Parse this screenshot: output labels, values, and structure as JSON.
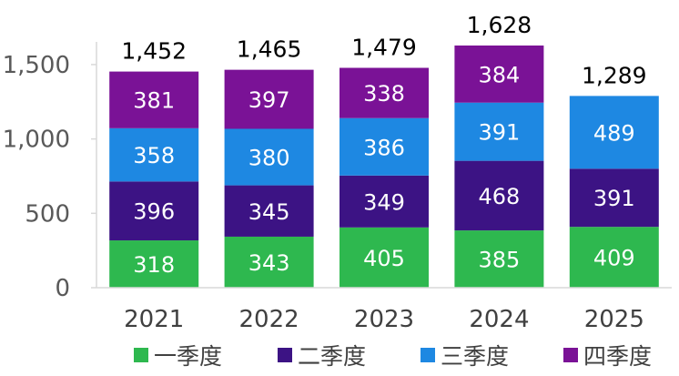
{
  "chart_data": {
    "type": "bar",
    "stacked": true,
    "categories": [
      "2021",
      "2022",
      "2023",
      "2024",
      "2025"
    ],
    "series": [
      {
        "name": "一季度",
        "color": "#2EB84F",
        "values": [
          318,
          343,
          405,
          385,
          409
        ]
      },
      {
        "name": "二季度",
        "color": "#3C1384",
        "values": [
          396,
          345,
          349,
          468,
          391
        ]
      },
      {
        "name": "三季度",
        "color": "#1E88E2",
        "values": [
          358,
          380,
          386,
          391,
          489
        ]
      },
      {
        "name": "四季度",
        "color": "#7A1296",
        "values": [
          381,
          397,
          338,
          384,
          null
        ]
      }
    ],
    "totals": [
      "1,452",
      "1,465",
      "1,479",
      "1,628",
      "1,289"
    ],
    "ylim": [
      0,
      1628
    ],
    "yticks": [
      0,
      500,
      1000,
      1500
    ],
    "ytick_labels": [
      "0",
      "500",
      "1,000",
      "1,500"
    ],
    "title": "",
    "xlabel": "",
    "ylabel": "",
    "grid": false,
    "legend_position": "bottom"
  }
}
